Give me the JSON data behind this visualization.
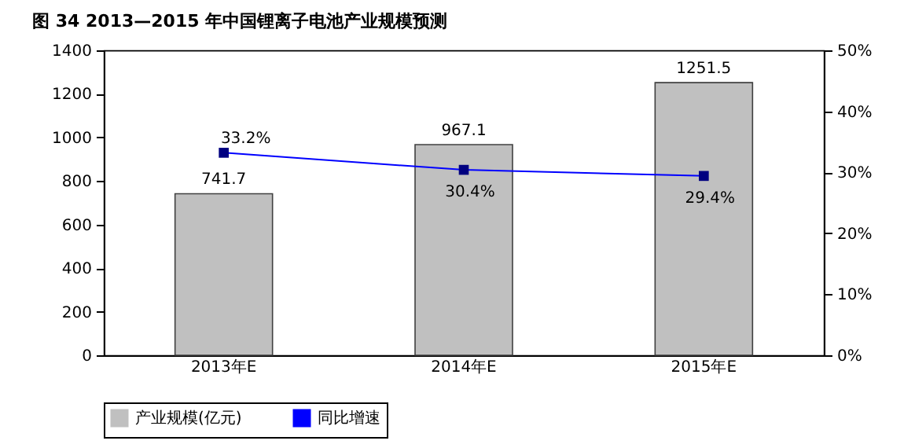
{
  "chart_data": {
    "type": "bar",
    "title": "图 34 2013—2015 年中国锂离子电池产业规模预测",
    "categories": [
      "2013年E",
      "2014年E",
      "2015年E"
    ],
    "series": [
      {
        "name": "产业规模(亿元)",
        "color": "#c0c0c0",
        "values": [
          741.7,
          967.1,
          1251.5
        ],
        "value_labels": [
          "741.7",
          "967.1",
          "1251.5"
        ]
      },
      {
        "name": "同比增速",
        "type": "line",
        "axis": "y2",
        "color": "#0000ff",
        "values": [
          33.2,
          30.4,
          29.4
        ],
        "value_labels": [
          "33.2%",
          "30.4%",
          "29.4%"
        ]
      }
    ],
    "ylim": [
      0,
      1400
    ],
    "yticks": [
      0,
      200,
      400,
      600,
      800,
      1000,
      1200,
      1400
    ],
    "y2lim": [
      0,
      50
    ],
    "y2ticks": [
      {
        "value": 0,
        "label": "0%"
      },
      {
        "value": 10,
        "label": "10%"
      },
      {
        "value": 20,
        "label": "20%"
      },
      {
        "value": 30,
        "label": "30%"
      },
      {
        "value": 40,
        "label": "40%"
      },
      {
        "value": 50,
        "label": "50%"
      }
    ],
    "marker": "square",
    "legend": "bottom",
    "grid": false
  }
}
